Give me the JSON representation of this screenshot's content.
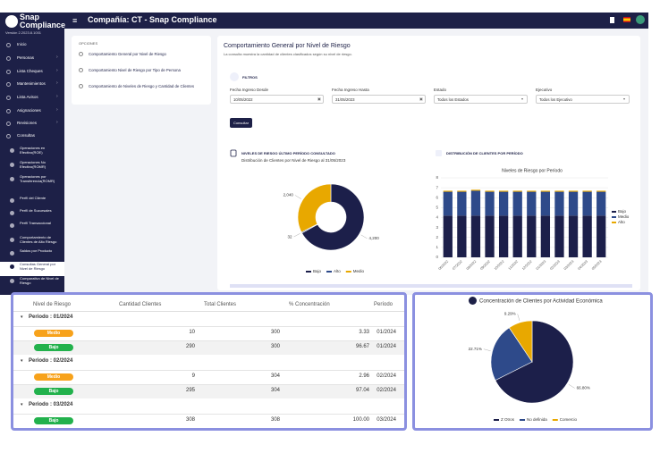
{
  "sidebar": {
    "brand": "Snap Compliance",
    "version": "Versión 2.2023.8.1001",
    "menu": [
      "Inicio",
      "Personas",
      "Lista Cheques",
      "Mantenimientos",
      "Lista Avisos",
      "Asignaciones",
      "Revisiones",
      "Consultas"
    ],
    "submenu": [
      "Operaciones en Efectivo(ROE)",
      "Operaciones No Efectivo(ROMR)",
      "Operaciones por Transferencia(ROMR)",
      "Perfil del Cliente",
      "Perfil de Sucursales",
      "Perfil Transaccional",
      "Comportamiento de Clientes de Alto Riesgo",
      "Saldos por Producto",
      "Consultas General por Nivel de Riesgo",
      "Comparativo de Nivel de Riesgo"
    ]
  },
  "header": {
    "title": "Compañía: CT - Snap Compliance"
  },
  "options": {
    "title": "OPCIONES",
    "items": [
      "Comportamiento General por Nivel de Riesgo",
      "Comportamiento Nivel de Riesgo por Tipo de Persona",
      "Comportamiento de Niveles de Riesgo y Cantidad de Clientes"
    ]
  },
  "main": {
    "title": "Comportamiento General por Nivel de Riesgo",
    "subtitle": "La consulta muestra la cantidad de clientes clasificados según su nivel de riesgo.",
    "filters_title": "FILTROS",
    "fields": [
      {
        "label": "Fecha Ingreso Desde",
        "value": "10/05/2022"
      },
      {
        "label": "Fecha Ingreso Hasta",
        "value": "31/05/2023"
      },
      {
        "label": "Estado",
        "value": "Todos los Estados"
      },
      {
        "label": "Ejecutivo",
        "value": "Todos los Ejecutivo"
      }
    ],
    "button": "Consultar"
  },
  "table": {
    "header": [
      "Nivel de Riesgo",
      "Cantidad Clientes",
      "Total Clientes",
      "% Concentración",
      "Período"
    ],
    "groups": [
      {
        "label": "Periodo : 01/2024",
        "rows": [
          [
            "Medio",
            "10",
            "300",
            "3.33",
            "01/2024"
          ],
          [
            "Bajo",
            "290",
            "300",
            "96.67",
            "01/2024"
          ]
        ]
      },
      {
        "label": "Periodo : 02/2024",
        "rows": [
          [
            "Medio",
            "9",
            "304",
            "2.96",
            "02/2024"
          ],
          [
            "Bajo",
            "295",
            "304",
            "97.04",
            "02/2024"
          ]
        ]
      },
      {
        "label": "Periodo : 03/2024",
        "rows": [
          [
            "Bajo",
            "308",
            "308",
            "100.00",
            "03/2024"
          ]
        ]
      }
    ]
  },
  "chart_data": [
    {
      "type": "donut",
      "title": "NIVELES DE RIESGO ÚLTIMO PERÍODO CONSULTADO",
      "subtitle": "Distribución de Clientes por Nivel de Riesgo al 31/05/2023",
      "categories": [
        "Bajo",
        "Alto",
        "Medio"
      ],
      "values": [
        4200,
        32,
        2040
      ],
      "value_labels": [
        "4,200",
        "32",
        "2,040"
      ],
      "colors": [
        "#1c1f4a",
        "#2e4a8a",
        "#e8a800"
      ]
    },
    {
      "type": "stacked_bar",
      "title": "DISTRIBUCIÓN DE CLIENTES POR PERÍODO",
      "subtitle": "Niveles de Riesgo por Período",
      "categories": [
        "06/2022",
        "07/2022",
        "08/2022",
        "09/2022",
        "10/2022",
        "11/2022",
        "12/2022",
        "01/2023",
        "02/2023",
        "03/2023",
        "04/2023",
        "05/2023"
      ],
      "series": [
        {
          "name": "Bajo",
          "color": "#1c1f4a",
          "values": [
            4.2,
            4.2,
            4.2,
            4.2,
            4.2,
            4.2,
            4.2,
            4.2,
            4.2,
            4.2,
            4.2,
            4.2
          ]
        },
        {
          "name": "Medio",
          "color": "#2e4a8a",
          "values": [
            2.4,
            2.4,
            2.5,
            2.4,
            2.4,
            2.4,
            2.4,
            2.4,
            2.4,
            2.4,
            2.4,
            2.4
          ]
        },
        {
          "name": "Alto",
          "color": "#e8a800",
          "values": [
            0.1,
            0.1,
            0.1,
            0.1,
            0.1,
            0.1,
            0.1,
            0.1,
            0.1,
            0.1,
            0.1,
            0.1
          ]
        }
      ],
      "ylim": [
        0,
        8
      ],
      "yticks": [
        0,
        1,
        2,
        3,
        4,
        5,
        6,
        7,
        8
      ],
      "legend": "right"
    },
    {
      "type": "pie",
      "title": "Concentración de Clientes por Actividad Económica",
      "categories": [
        "Z Otros",
        "No definida",
        "Comercio"
      ],
      "values": [
        66.8,
        22.71,
        9.29
      ],
      "value_labels": [
        "66.80%",
        "22.71%",
        "9.29%"
      ],
      "colors": [
        "#1c1f4a",
        "#2e4a8a",
        "#e8a800"
      ]
    }
  ]
}
